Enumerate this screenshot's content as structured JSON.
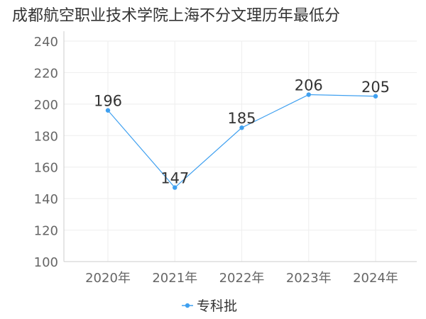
{
  "title": "成都航空职业技术学院上海不分文理历年最低分",
  "chart_data": {
    "type": "line",
    "title": "成都航空职业技术学院上海不分文理历年最低分",
    "categories": [
      "2020年",
      "2021年",
      "2022年",
      "2023年",
      "2024年"
    ],
    "series": [
      {
        "name": "专科批",
        "values": [
          196,
          147,
          185,
          206,
          205
        ]
      }
    ],
    "ylim": [
      100,
      240
    ],
    "yticks": [
      100,
      120,
      140,
      160,
      180,
      200,
      220,
      240
    ],
    "grid": true,
    "legend": "bottom",
    "xlabel": "",
    "ylabel": ""
  },
  "colors": {
    "series": "#3fa0f0",
    "grid": "#eeeeee",
    "axis": "#cccccc"
  }
}
